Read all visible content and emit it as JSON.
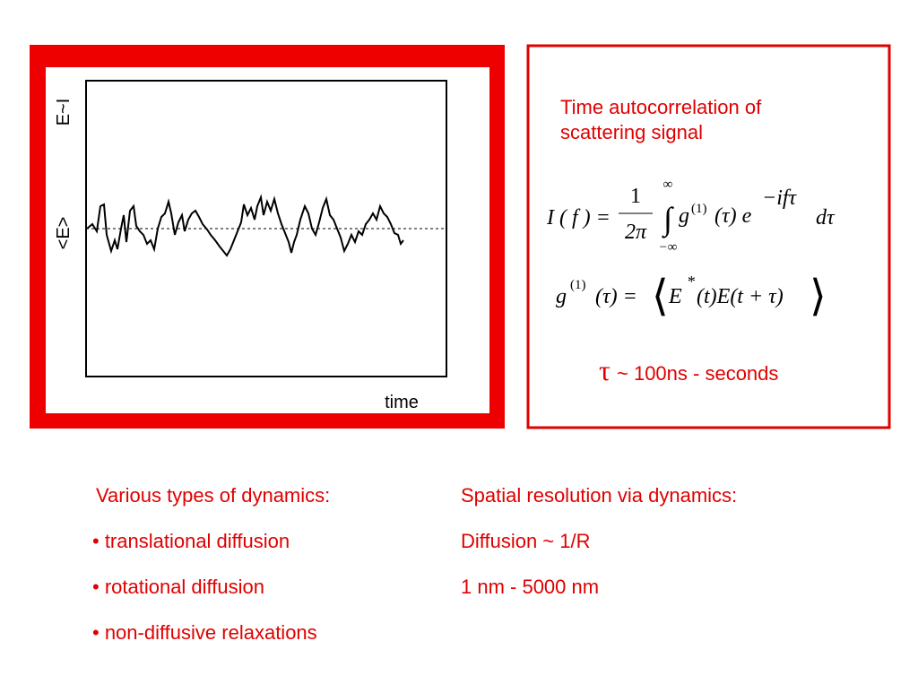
{
  "plot": {
    "y_label": "E~I",
    "mean_label": "<E>",
    "x_label": "time"
  },
  "box": {
    "title_lines": [
      "Time autocorrelation of",
      "scattering signal"
    ],
    "eq1": {
      "lhs": "I ( f ) =",
      "num": "1",
      "den": "2π",
      "integral": "∫",
      "upper": "∞",
      "lower": "−∞",
      "g": "g",
      "g_sup": "(1)",
      "mid": "(τ) e",
      "exp": "−ifτ",
      "tail": "dτ"
    },
    "eq2": {
      "g": "g",
      "g_sup": "(1)",
      "mid": "(τ) =",
      "open": "⟨",
      "E": "E",
      "star": "*",
      "rest": "(t)E(t + τ)",
      "close": "⟩"
    },
    "tau": "τ",
    "tau_text": "~ 100ns - seconds"
  },
  "left_list": [
    "Various types of dynamics:",
    "• translational diffusion",
    "• rotational diffusion",
    "• non-diffusive relaxations"
  ],
  "right_list": [
    "Spatial resolution via dynamics:",
    "Diffusion ~ 1/R",
    "1 nm - 5000 nm"
  ]
}
